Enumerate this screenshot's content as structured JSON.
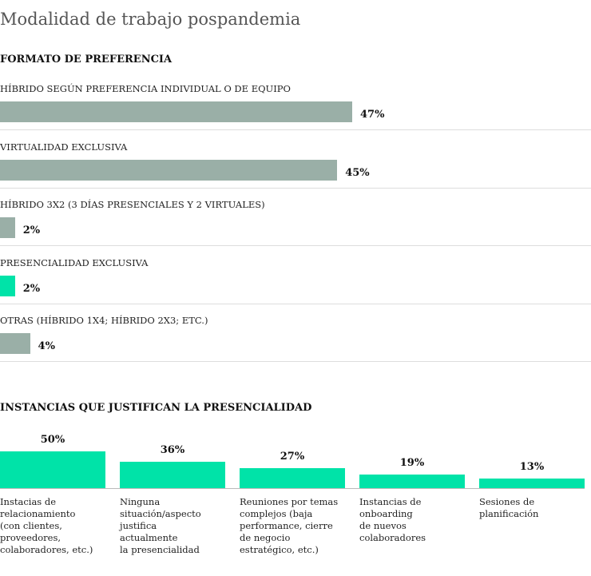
{
  "title": "Modalidad de trabajo pospandemia",
  "chart_data": [
    {
      "type": "hbar",
      "title": "FORMATO DE PREFERENCIA",
      "categories": [
        "HÍBRIDO SEGÚN PREFERENCIA INDIVIDUAL O DE EQUIPO",
        "VIRTUALIDAD EXCLUSIVA",
        "HÍBRIDO 3X2 (3 DÍAS PRESENCIALES Y 2 VIRTUALES)",
        "PRESENCIALIDAD EXCLUSIVA",
        "OTRAS (HÍBRIDO 1X4; HÍBRIDO 2X3; ETC.)"
      ],
      "values": [
        47,
        45,
        2,
        2,
        4
      ],
      "value_labels": [
        "47%",
        "45%",
        "2%",
        "2%",
        "4%"
      ],
      "colors": [
        "#9aafa7",
        "#9aafa7",
        "#9aafa7",
        "#00e3a8",
        "#9aafa7"
      ]
    },
    {
      "type": "bar",
      "title": "INSTANCIAS QUE JUSTIFICAN LA PRESENCIALIDAD",
      "categories": [
        "Instacias de\nrelacionamiento\n(con clientes,\nproveedores,\ncolaboradores, etc.)",
        "Ninguna\nsituación/aspecto\njustifica\nactualmente\nla presencialidad",
        "Reuniones por temas\ncomplejos (baja\nperformance, cierre\nde negocio\nestratégico, etc.)",
        "Instancias de\nonboarding\nde nuevos\ncolaboradores",
        "Sesiones de\nplanificación"
      ],
      "values": [
        50,
        36,
        27,
        19,
        13
      ],
      "value_labels": [
        "50%",
        "36%",
        "27%",
        "19%",
        "13%"
      ],
      "color": "#00e3a8"
    }
  ]
}
